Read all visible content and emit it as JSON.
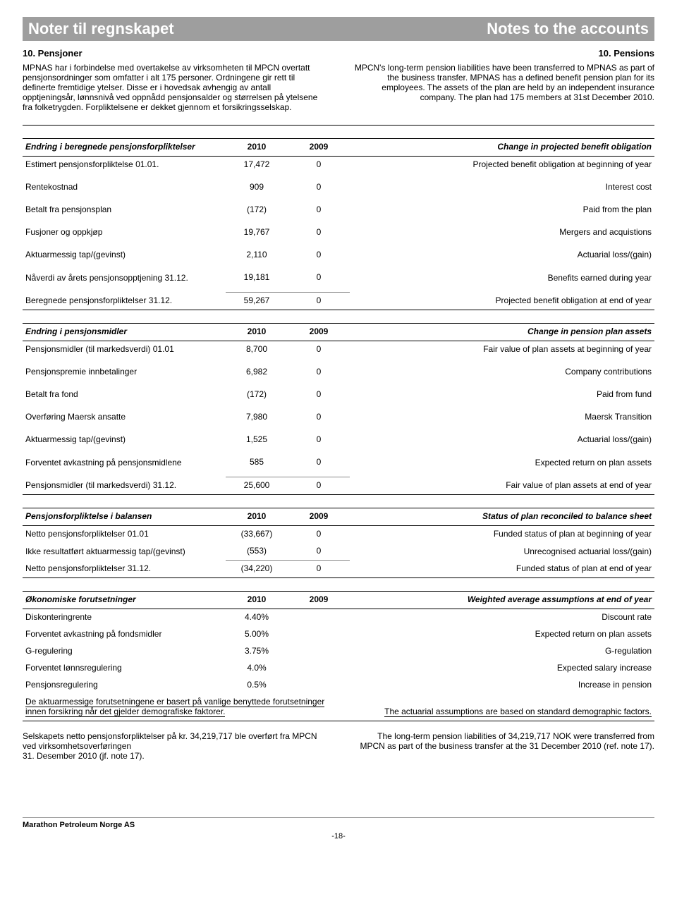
{
  "header": {
    "left": "Noter til regnskapet",
    "right": "Notes to the accounts"
  },
  "subheader": {
    "left": "10. Pensjoner",
    "right": "10. Pensions"
  },
  "intro": {
    "left": "MPNAS har i forbindelse med overtakelse av virksomheten til MPCN overtatt pensjonsordninger som omfatter i alt 175 personer. Ordningene gir rett til definerte fremtidige ytelser. Disse er i hovedsak avhengig av antall opptjeningsår, lønnsnivå ved oppnådd pensjonsalder og størrelsen på ytelsene fra folketrygden. Forpliktelsene er dekket gjennom et forsikringsselskap.",
    "right": "MPCN's long-term pension liabilities have been transferred to MPNAS as part of the business transfer. MPNAS has a defined benefit pension plan for its employees. The assets of the plan are held by an independent insurance company. The plan had 175 members at 31st December 2010."
  },
  "tables": [
    {
      "title_left": "Endring i beregnede pensjonsforpliktelser",
      "title_right": "Change in projected benefit obligation",
      "col1": "2010",
      "col2": "2009",
      "rows": [
        {
          "l": "Estimert pensjonsforpliktelse 01.01.",
          "v1": "17,472",
          "v2": "0",
          "r": "Projected benefit obligation at beginning of year"
        },
        {
          "l": "Rentekostnad",
          "v1": "909",
          "v2": "0",
          "r": "Interest cost"
        },
        {
          "l": "Betalt fra pensjonsplan",
          "v1": "(172)",
          "v2": "0",
          "r": "Paid from the plan"
        },
        {
          "l": "Fusjoner og oppkjøp",
          "v1": "19,767",
          "v2": "0",
          "r": "Mergers and acquistions"
        },
        {
          "l": "Aktuarmessig tap/(gevinst)",
          "v1": "2,110",
          "v2": "0",
          "r": "Actuarial loss/(gain)"
        },
        {
          "l": "Nåverdi av årets pensjonsopptjening 31.12.",
          "v1": "19,181",
          "v2": "0",
          "r": "Benefits earned during year"
        },
        {
          "l": "Beregnede pensjonsforpliktelser 31.12.",
          "v1": "59,267",
          "v2": "0",
          "r": "Projected benefit obligation at end of year"
        }
      ]
    },
    {
      "title_left": "Endring i pensjonsmidler",
      "title_right": "Change in pension plan assets",
      "col1": "2010",
      "col2": "2009",
      "rows": [
        {
          "l": "Pensjonsmidler (til markedsverdi) 01.01",
          "v1": "8,700",
          "v2": "0",
          "r": "Fair value of plan assets at beginning of year"
        },
        {
          "l": "Pensjonspremie innbetalinger",
          "v1": "6,982",
          "v2": "0",
          "r": "Company contributions"
        },
        {
          "l": "Betalt fra fond",
          "v1": "(172)",
          "v2": "0",
          "r": "Paid from fund"
        },
        {
          "l": "Overføring Maersk ansatte",
          "v1": "7,980",
          "v2": "0",
          "r": "Maersk Transition"
        },
        {
          "l": "Aktuarmessig tap/(gevinst)",
          "v1": "1,525",
          "v2": "0",
          "r": "Actuarial loss/(gain)"
        },
        {
          "l": "Forventet avkastning på pensjonsmidlene",
          "v1": "585",
          "v2": "0",
          "r": "Expected return on plan assets"
        },
        {
          "l": "Pensjonsmidler (til markedsverdi) 31.12.",
          "v1": "25,600",
          "v2": "0",
          "r": "Fair value of plan assets at end of year"
        }
      ]
    },
    {
      "title_left": "Pensjonsforpliktelse i balansen",
      "title_right": "Status of plan reconciled to balance sheet",
      "col1": "2010",
      "col2": "2009",
      "rows": [
        {
          "l": "Netto pensjonsforpliktelser 01.01",
          "v1": "(33,667)",
          "v2": "0",
          "r": "Funded status of plan at beginning of year"
        },
        {
          "l": "Ikke resultatført aktuarmessig tap/(gevinst)",
          "v1": "(553)",
          "v2": "0",
          "r": "Unrecognised actuarial loss/(gain)"
        },
        {
          "l": "Netto pensjonsforpliktelser 31.12.",
          "v1": "(34,220)",
          "v2": "0",
          "r": "Funded status of plan at end of year"
        }
      ]
    },
    {
      "title_left": "Økonomiske forutsetninger",
      "title_right": "Weighted average assumptions at end of year",
      "col1": "2010",
      "col2": "2009",
      "rows": [
        {
          "l": "Diskonteringrente",
          "v1": "4.40%",
          "v2": "",
          "r": "Discount rate"
        },
        {
          "l": "Forventet avkastning på fondsmidler",
          "v1": "5.00%",
          "v2": "",
          "r": "Expected return on plan assets"
        },
        {
          "l": "G-regulering",
          "v1": "3.75%",
          "v2": "",
          "r": "G-regulation"
        },
        {
          "l": "Forventet lønnsregulering",
          "v1": "4.0%",
          "v2": "",
          "r": "Expected salary increase"
        },
        {
          "l": "Pensjonsregulering",
          "v1": "0.5%",
          "v2": "",
          "r": "Increase in pension"
        }
      ]
    }
  ],
  "assumptions_note": {
    "left": "De aktuarmessige forutsetningene er basert på vanlige benyttede forutsetninger innen forsikring når det gjelder demografiske faktorer.",
    "right": "The actuarial assumptions are based on standard demographic factors."
  },
  "transfer_note": {
    "left": "Selskapets netto pensjonsforpliktelser på kr. 34,219,717 ble overført fra MPCN ved virksomhetsoverføringen\n31. Desember 2010 (jf. note 17).",
    "right": "The long-term pension liabilities of 34,219,717 NOK were transferred from MPCN as part of the business transfer at the 31 December 2010 (ref. note 17)."
  },
  "footer": {
    "company": "Marathon Petroleum Norge AS",
    "page": "-18-"
  }
}
